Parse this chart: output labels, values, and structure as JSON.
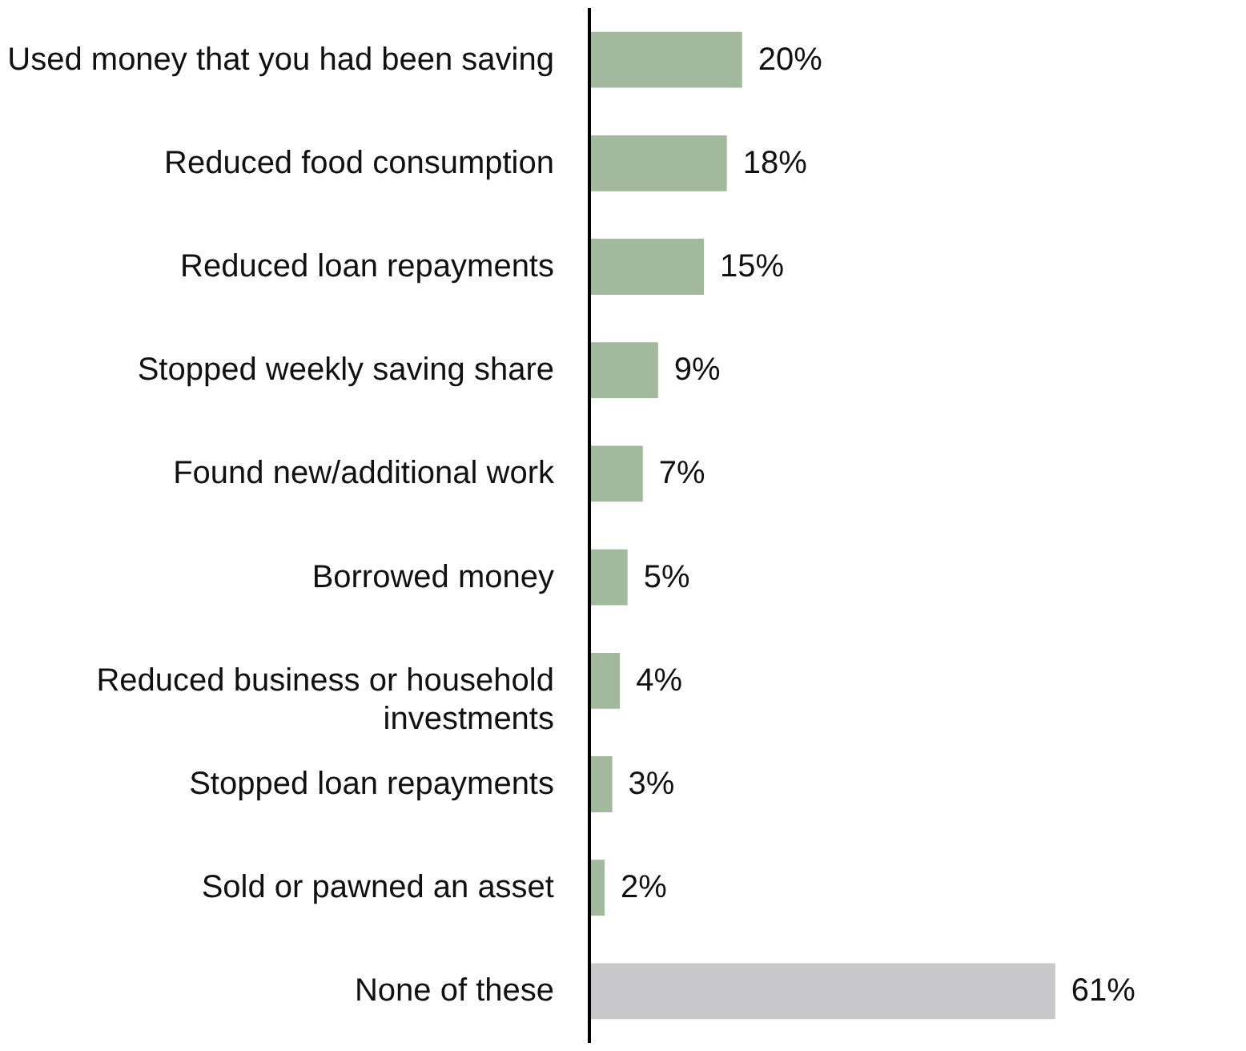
{
  "chart_data": {
    "type": "bar",
    "orientation": "horizontal",
    "categories": [
      "Used money that you had been saving",
      "Reduced food consumption",
      "Reduced loan repayments",
      "Stopped weekly saving share",
      "Found new/additional work",
      "Borrowed money",
      "Reduced business or household investments",
      "Stopped loan repayments",
      "Sold or pawned an asset",
      "None of these"
    ],
    "values": [
      20,
      18,
      15,
      9,
      7,
      5,
      4,
      3,
      2,
      61
    ],
    "colors": [
      "#a3b99d",
      "#a3b99d",
      "#a3b99d",
      "#a3b99d",
      "#a3b99d",
      "#a3b99d",
      "#a3b99d",
      "#a3b99d",
      "#a3b99d",
      "#c8c8ca"
    ],
    "value_labels": [
      "20%",
      "18%",
      "15%",
      "9%",
      "7%",
      "5%",
      "4%",
      "3%",
      "2%",
      "61%"
    ]
  }
}
